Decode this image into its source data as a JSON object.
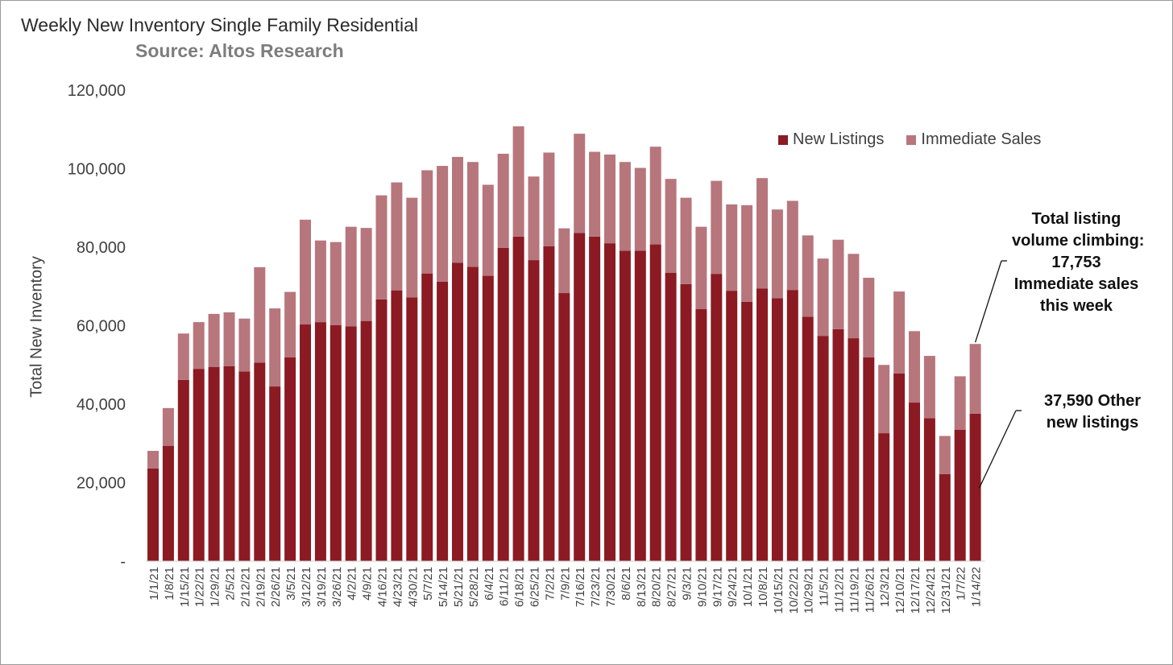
{
  "title": "Weekly New Inventory Single Family Residential",
  "subtitle": "Source: Altos Research",
  "colors": {
    "new_listings": "#8b1a23",
    "immediate_sales": "#b7767c",
    "axis_text": "#404040"
  },
  "annotations": {
    "top_lines": [
      "Total listing",
      "volume climbing:",
      "17,753",
      "Immediate sales",
      "this week"
    ],
    "bottom_lines": [
      "37,590  Other",
      "new listings"
    ]
  },
  "chart_data": {
    "type": "bar",
    "stacked": true,
    "title": "Weekly New Inventory Single Family Residential",
    "subtitle": "Source: Altos Research",
    "ylabel": "Total New Inventory",
    "xlabel": "",
    "ylim": [
      0,
      120000
    ],
    "yticks": [
      0,
      20000,
      40000,
      60000,
      80000,
      100000,
      120000
    ],
    "ytick_labels": [
      "-",
      "20,000",
      "40,000",
      "60,000",
      "80,000",
      "100,000",
      "120,000"
    ],
    "grid": false,
    "legend_position": "top-right",
    "categories": [
      "1/1/21",
      "1/8/21",
      "1/15/21",
      "1/22/21",
      "1/29/21",
      "2/5/21",
      "2/12/21",
      "2/19/21",
      "2/26/21",
      "3/5/21",
      "3/12/21",
      "3/19/21",
      "3/26/21",
      "4/2/21",
      "4/9/21",
      "4/16/21",
      "4/23/21",
      "4/30/21",
      "5/7/21",
      "5/14/21",
      "5/21/21",
      "5/28/21",
      "6/4/21",
      "6/11/21",
      "6/18/21",
      "6/25/21",
      "7/2/21",
      "7/9/21",
      "7/16/21",
      "7/23/21",
      "7/30/21",
      "8/6/21",
      "8/13/21",
      "8/20/21",
      "8/27/21",
      "9/3/21",
      "9/10/21",
      "9/17/21",
      "9/24/21",
      "10/1/21",
      "10/8/21",
      "10/15/21",
      "10/22/21",
      "10/29/21",
      "11/5/21",
      "11/12/21",
      "11/19/21",
      "11/26/21",
      "12/3/21",
      "12/10/21",
      "12/17/21",
      "12/24/21",
      "12/31/21",
      "1/7/22",
      "1/14/22"
    ],
    "series": [
      {
        "name": "New Listings",
        "values": [
          23600,
          29400,
          46200,
          49000,
          49500,
          49700,
          48300,
          50600,
          44500,
          51900,
          60300,
          60900,
          60100,
          59800,
          61200,
          66700,
          69000,
          67200,
          73300,
          71200,
          76000,
          75000,
          72700,
          79800,
          82700,
          76700,
          80200,
          68300,
          83600,
          82700,
          81000,
          79100,
          79100,
          80700,
          73500,
          70600,
          64200,
          73200,
          68900,
          66100,
          69500,
          67000,
          69100,
          62300,
          57400,
          59100,
          56800,
          51900,
          32600,
          47800,
          40400,
          36400,
          22200,
          33500,
          37590
        ]
      },
      {
        "name": "Immediate Sales",
        "values": [
          4500,
          9600,
          11800,
          11900,
          13500,
          13700,
          13500,
          24300,
          19900,
          16700,
          26700,
          20800,
          21200,
          25400,
          23700,
          26500,
          27500,
          25400,
          26300,
          29500,
          27000,
          26700,
          23200,
          24000,
          28100,
          21300,
          23900,
          16500,
          25300,
          21600,
          22600,
          22600,
          21100,
          24900,
          23900,
          22000,
          21000,
          23700,
          22000,
          24600,
          28100,
          22600,
          22700,
          20700,
          19700,
          22800,
          21500,
          20300,
          17400,
          20900,
          18200,
          15900,
          9700,
          13600,
          17753
        ]
      }
    ]
  }
}
